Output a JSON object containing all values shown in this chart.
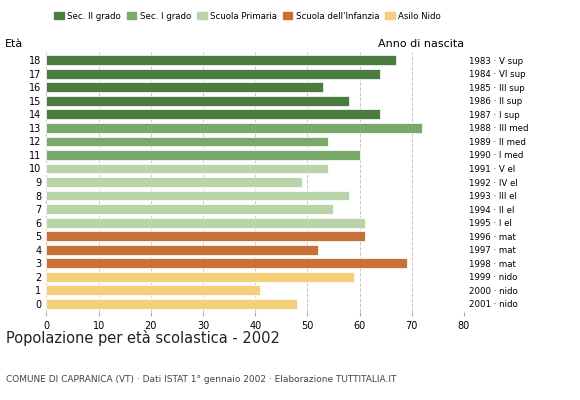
{
  "ages": [
    18,
    17,
    16,
    15,
    14,
    13,
    12,
    11,
    10,
    9,
    8,
    7,
    6,
    5,
    4,
    3,
    2,
    1,
    0
  ],
  "values": [
    67,
    64,
    53,
    58,
    64,
    72,
    54,
    60,
    54,
    49,
    58,
    55,
    61,
    61,
    52,
    69,
    59,
    41,
    48
  ],
  "right_labels": [
    "1983 · V sup",
    "1984 · VI sup",
    "1985 · III sup",
    "1986 · II sup",
    "1987 · I sup",
    "1988 · III med",
    "1989 · II med",
    "1990 · I med",
    "1991 · V el",
    "1992 · IV el",
    "1993 · III el",
    "1994 · II el",
    "1995 · I el",
    "1996 · mat",
    "1997 · mat",
    "1998 · mat",
    "1999 · nido",
    "2000 · nido",
    "2001 · nido"
  ],
  "colors": [
    "#4a7c3f",
    "#4a7c3f",
    "#4a7c3f",
    "#4a7c3f",
    "#4a7c3f",
    "#7aaa6a",
    "#7aaa6a",
    "#7aaa6a",
    "#b8d4a8",
    "#b8d4a8",
    "#b8d4a8",
    "#b8d4a8",
    "#b8d4a8",
    "#c87137",
    "#c87137",
    "#c87137",
    "#f5d07a",
    "#f5d07a",
    "#f5d07a"
  ],
  "legend_labels": [
    "Sec. II grado",
    "Sec. I grado",
    "Scuola Primaria",
    "Scuola dell'Infanzia",
    "Asilo Nido"
  ],
  "legend_colors": [
    "#4a7c3f",
    "#7aaa6a",
    "#b8d4a8",
    "#c87137",
    "#f5d07a"
  ],
  "title": "Popolazione per età scolastica - 2002",
  "subtitle": "COMUNE DI CAPRANICA (VT) · Dati ISTAT 1° gennaio 2002 · Elaborazione TUTTITALIA.IT",
  "label_eta": "Età",
  "label_anno": "Anno di nascita",
  "xlim": [
    0,
    80
  ],
  "xticks": [
    0,
    10,
    20,
    30,
    40,
    50,
    60,
    70,
    80
  ],
  "bg_color": "#ffffff",
  "bar_height": 0.72,
  "grid_color": "#c8c8c8"
}
